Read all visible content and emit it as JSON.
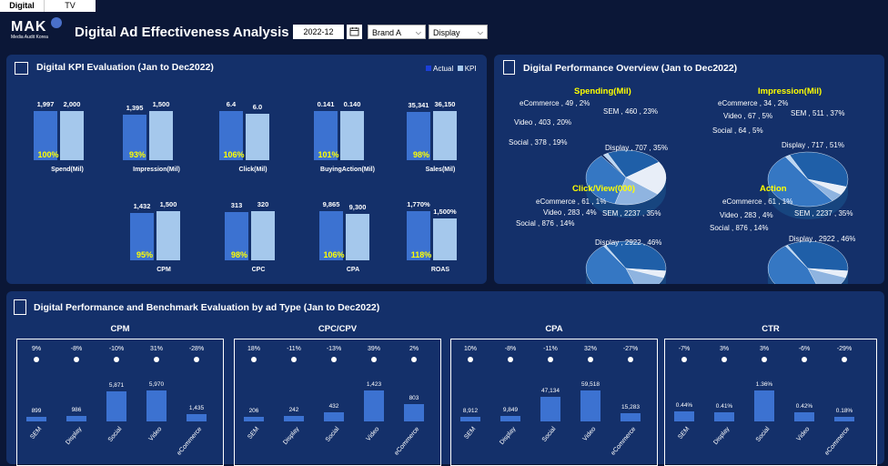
{
  "tabs": [
    {
      "label": "Digital"
    },
    {
      "label": "TV"
    }
  ],
  "header": {
    "logo_main": "MAK",
    "logo_sub": "Media Audit Korea",
    "title": "Digital Ad Effectiveness Analysis",
    "date_value": "2022-12",
    "brand_value": "Brand A",
    "media_value": "Display"
  },
  "kpi": {
    "title": "Digital KPI Evaluation (Jan to Dec2022)",
    "legend_actual": "Actual",
    "legend_kpi": "KPI",
    "actual_color": "#3c72d1",
    "kpi_color": "#a5c8ec",
    "items": [
      {
        "name": "Spend(Mil)",
        "actual": "1,997",
        "kpi": "2,000",
        "pct": "100%",
        "a": 1997,
        "k": 2000
      },
      {
        "name": "Impression(Mil)",
        "actual": "1,395",
        "kpi": "1,500",
        "pct": "93%",
        "a": 1395,
        "k": 1500
      },
      {
        "name": "Click(Mil)",
        "actual": "6.4",
        "kpi": "6.0",
        "pct": "106%",
        "a": 6.4,
        "k": 6.0
      },
      {
        "name": "BuyingAction(Mil)",
        "actual": "0.141",
        "kpi": "0.140",
        "pct": "101%",
        "a": 0.141,
        "k": 0.14
      },
      {
        "name": "Sales(Mil)",
        "actual": "35,341",
        "kpi": "36,150",
        "pct": "98%",
        "a": 35341,
        "k": 36150
      },
      {
        "name": "CPM",
        "actual": "1,432",
        "kpi": "1,500",
        "pct": "95%",
        "a": 1432,
        "k": 1500
      },
      {
        "name": "CPC",
        "actual": "313",
        "kpi": "320",
        "pct": "98%",
        "a": 313,
        "k": 320
      },
      {
        "name": "CPA",
        "actual": "9,865",
        "kpi": "9,300",
        "pct": "106%",
        "a": 9865,
        "k": 9300
      },
      {
        "name": "ROAS",
        "actual": "1,770%",
        "kpi": "1,500%",
        "pct": "118%",
        "a": 1770,
        "k": 1500
      }
    ]
  },
  "overview": {
    "title": "Digital Performance Overview (Jan to Dec2022)",
    "pies": [
      {
        "title": "Spending(Mil)",
        "labels": [
          "eCommerce , 49 , 2%",
          "SEM , 460 , 23%",
          "Video , 403 , 20%",
          "Social , 378 , 19%",
          "Display , 707 , 35%"
        ]
      },
      {
        "title": "Impression(Mil)",
        "labels": [
          "eCommerce , 34 , 2%",
          "SEM , 511 , 37%",
          "Video , 67 , 5%",
          "Social , 64 , 5%",
          "Display , 717 , 51%"
        ]
      },
      {
        "title": "Click/View(000)",
        "labels": [
          "eCommerce , 61 , 1%",
          "SEM , 2237 , 35%",
          "Video , 283 , 4%",
          "Social , 876 , 14%",
          "Display , 2922 , 46%"
        ]
      },
      {
        "title": "Action",
        "labels": [
          "eCommerce , 61 , 1%",
          "SEM , 2237 , 35%",
          "Video , 283 , 4%",
          "Social , 876 , 14%",
          "Display , 2922 , 46%"
        ]
      }
    ]
  },
  "benchmark": {
    "title": "Digital Performance and Benchmark Evaluation by ad Type (Jan to Dec2022)",
    "bar_color": "#3c72d1",
    "categories": [
      "SEM",
      "Display",
      "Social",
      "Video",
      "eCommerce"
    ],
    "charts": [
      {
        "title": "CPM",
        "pcts": [
          "9%",
          "-8%",
          "-10%",
          "31%",
          "-28%"
        ],
        "values": [
          "899",
          "986",
          "5,871",
          "5,970",
          "1,435"
        ],
        "nums": [
          899,
          986,
          5871,
          5970,
          1435
        ]
      },
      {
        "title": "CPC/CPV",
        "pcts": [
          "18%",
          "-11%",
          "-13%",
          "39%",
          "2%"
        ],
        "values": [
          "206",
          "242",
          "432",
          "1,423",
          "803"
        ],
        "nums": [
          206,
          242,
          432,
          1423,
          803
        ]
      },
      {
        "title": "CPA",
        "pcts": [
          "10%",
          "-8%",
          "-11%",
          "32%",
          "-27%"
        ],
        "values": [
          "8,912",
          "9,849",
          "47,134",
          "59,518",
          "15,283"
        ],
        "nums": [
          8912,
          9849,
          47134,
          59518,
          15283
        ]
      },
      {
        "title": "CTR",
        "pcts": [
          "-7%",
          "3%",
          "3%",
          "-6%",
          "-29%"
        ],
        "values": [
          "0.44%",
          "0.41%",
          "1.36%",
          "0.42%",
          "0.18%"
        ],
        "nums": [
          0.44,
          0.41,
          1.36,
          0.42,
          0.18
        ]
      }
    ]
  }
}
